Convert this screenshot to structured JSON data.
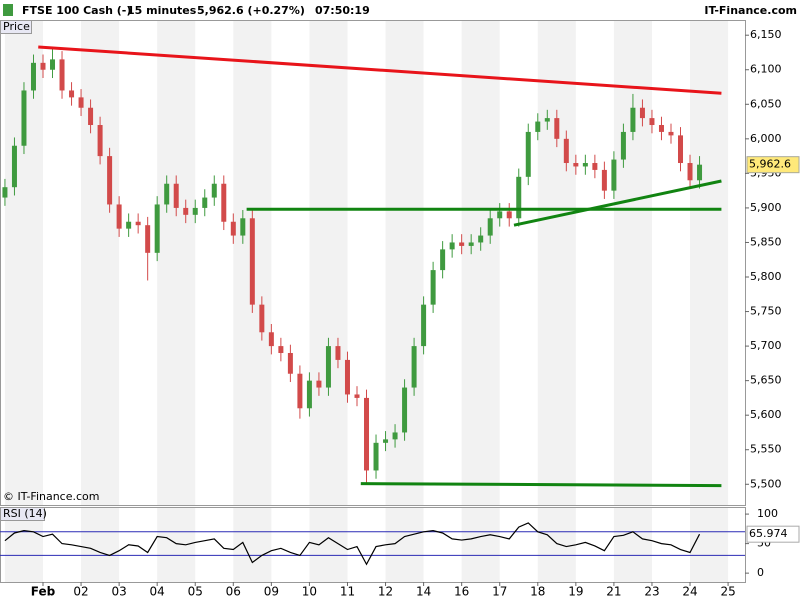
{
  "header": {
    "symbol": "FTSE 100 Cash (-)",
    "interval": "15 minutes",
    "quote": "5,962.6 (+0.27%)",
    "time": "07:50:19",
    "brand": "IT-Finance.com"
  },
  "chart_data": [
    {
      "type": "candlestick",
      "title": "Price",
      "footer": "© IT-Finance.com",
      "categories": [
        "Feb",
        "02",
        "03",
        "04",
        "05",
        "06",
        "09",
        "10",
        "11",
        "12",
        "14",
        "16",
        "17",
        "18",
        "19",
        "21",
        "23",
        "24",
        "25"
      ],
      "open": [
        5915,
        5930,
        5990,
        6070,
        6110,
        6100,
        6115,
        6070,
        6060,
        6045,
        6020,
        5975,
        5905,
        5870,
        5880,
        5875,
        5835,
        5905,
        5935,
        5900,
        5890,
        5900,
        5915,
        5935,
        5880,
        5860,
        5885,
        5760,
        5720,
        5700,
        5690,
        5660,
        5610,
        5650,
        5640,
        5700,
        5680,
        5630,
        5625,
        5520,
        5560,
        5565,
        5575,
        5640,
        5700,
        5760,
        5810,
        5840,
        5850,
        5845,
        5850,
        5860,
        5885,
        5895,
        5885,
        5945,
        6010,
        6025,
        6030,
        6000,
        5965,
        5960,
        5965,
        5955,
        5925,
        5970,
        6010,
        6045,
        6030,
        6020,
        6010,
        6005,
        5965,
        5940
      ],
      "high": [
        5942,
        6002,
        6082,
        6122,
        6122,
        6130,
        6127,
        6082,
        6072,
        6057,
        6032,
        5987,
        5917,
        5892,
        5892,
        5887,
        5917,
        5947,
        5947,
        5912,
        5912,
        5927,
        5947,
        5947,
        5892,
        5897,
        5897,
        5772,
        5732,
        5712,
        5702,
        5672,
        5662,
        5662,
        5712,
        5712,
        5692,
        5642,
        5637,
        5572,
        5577,
        5587,
        5652,
        5712,
        5772,
        5822,
        5852,
        5862,
        5862,
        5862,
        5872,
        5897,
        5907,
        5907,
        5957,
        6022,
        6037,
        6042,
        6042,
        6012,
        5977,
        5977,
        5977,
        5967,
        5982,
        6022,
        6065,
        6057,
        6042,
        6032,
        6022,
        6017,
        5977,
        5975
      ],
      "low": [
        5903,
        5918,
        5978,
        6058,
        6088,
        6088,
        6058,
        6048,
        6033,
        6008,
        5963,
        5893,
        5858,
        5858,
        5863,
        5795,
        5823,
        5893,
        5888,
        5878,
        5878,
        5888,
        5903,
        5868,
        5848,
        5848,
        5748,
        5708,
        5688,
        5678,
        5648,
        5595,
        5598,
        5628,
        5628,
        5668,
        5618,
        5613,
        5500,
        5508,
        5548,
        5553,
        5563,
        5628,
        5688,
        5748,
        5798,
        5828,
        5833,
        5833,
        5838,
        5848,
        5873,
        5873,
        5873,
        5933,
        5998,
        6013,
        5988,
        5953,
        5948,
        5948,
        5943,
        5913,
        5913,
        5958,
        5998,
        6018,
        6008,
        5998,
        5993,
        5953,
        5928,
        5928
      ],
      "close": [
        5930,
        5990,
        6070,
        6110,
        6100,
        6115,
        6070,
        6060,
        6045,
        6020,
        5975,
        5905,
        5870,
        5880,
        5875,
        5835,
        5905,
        5935,
        5900,
        5890,
        5900,
        5915,
        5935,
        5880,
        5860,
        5885,
        5760,
        5720,
        5700,
        5690,
        5660,
        5610,
        5650,
        5640,
        5700,
        5680,
        5630,
        5625,
        5520,
        5560,
        5565,
        5575,
        5640,
        5700,
        5760,
        5810,
        5840,
        5850,
        5845,
        5850,
        5860,
        5885,
        5895,
        5885,
        5945,
        6010,
        6025,
        6030,
        6000,
        5965,
        5960,
        5965,
        5955,
        5925,
        5970,
        6010,
        6045,
        6030,
        6020,
        6010,
        6005,
        5965,
        5940,
        5962.6
      ],
      "up_color": "#3f9a3f",
      "down_color": "#d24a4a",
      "ylim": [
        5470,
        6172
      ],
      "yticks": [
        {
          "value": 5500,
          "label": "5,500"
        },
        {
          "value": 5550,
          "label": "5,550"
        },
        {
          "value": 5600,
          "label": "5,600"
        },
        {
          "value": 5650,
          "label": "5,650"
        },
        {
          "value": 5700,
          "label": "5,700"
        },
        {
          "value": 5750,
          "label": "5,750"
        },
        {
          "value": 5800,
          "label": "5,800"
        },
        {
          "value": 5850,
          "label": "5,850"
        },
        {
          "value": 5900,
          "label": "5,900"
        },
        {
          "value": 5950,
          "label": "5,950"
        },
        {
          "value": 6000,
          "label": "6,000"
        },
        {
          "value": 6050,
          "label": "6,050"
        },
        {
          "value": 6100,
          "label": "6,100"
        },
        {
          "value": 6150,
          "label": "6,150"
        }
      ],
      "last_price": {
        "value": 5962.6,
        "label": "5,962.6"
      },
      "trendlines": [
        {
          "color": "#e8141a",
          "x": [
            3.5,
            75.3
          ],
          "y": [
            6133,
            6066
          ]
        },
        {
          "color": "#118411",
          "x": [
            25.4,
            75.3
          ],
          "y": [
            5898,
            5898
          ]
        },
        {
          "color": "#118411",
          "x": [
            37.4,
            75.3
          ],
          "y": [
            5501,
            5498
          ]
        },
        {
          "color": "#118411",
          "x": [
            53.5,
            75.3
          ],
          "y": [
            5875,
            5939
          ]
        }
      ]
    },
    {
      "type": "line",
      "title": "RSI (14)",
      "color": "#000000",
      "values": [
        55,
        68,
        72,
        70,
        62,
        66,
        50,
        48,
        45,
        42,
        35,
        30,
        38,
        48,
        46,
        35,
        62,
        60,
        50,
        48,
        52,
        55,
        58,
        42,
        40,
        52,
        18,
        30,
        38,
        42,
        35,
        30,
        52,
        48,
        60,
        50,
        40,
        45,
        15,
        45,
        48,
        50,
        62,
        66,
        70,
        72,
        68,
        58,
        56,
        58,
        62,
        65,
        62,
        58,
        78,
        85,
        70,
        65,
        50,
        45,
        48,
        52,
        46,
        38,
        62,
        64,
        70,
        58,
        55,
        50,
        48,
        40,
        35,
        65.974
      ],
      "ylim": [
        -15,
        112
      ],
      "yticks": [
        0,
        50,
        100
      ],
      "levels": [
        30,
        70
      ],
      "level_color": "#2b2bb5",
      "last_value": 65.974
    }
  ]
}
